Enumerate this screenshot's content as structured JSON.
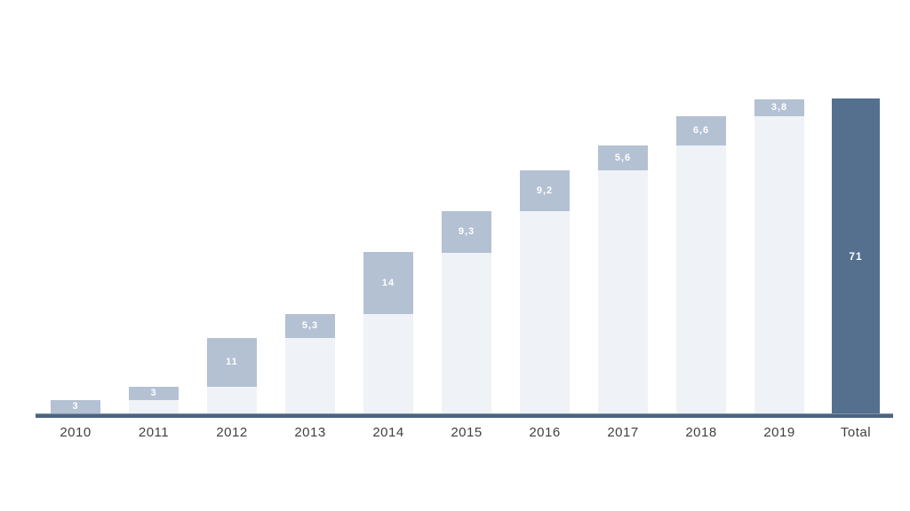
{
  "chart_data": {
    "type": "bar",
    "subtype": "waterfall-stacked",
    "title": "",
    "xlabel": "",
    "ylabel": "",
    "ylim": [
      0,
      71
    ],
    "grid": false,
    "legend": false,
    "categories": [
      "2010",
      "2011",
      "2012",
      "2013",
      "2014",
      "2015",
      "2016",
      "2017",
      "2018",
      "2019"
    ],
    "increments": [
      3,
      3,
      11,
      5.3,
      14,
      9.3,
      9.2,
      5.6,
      6.6,
      3.8
    ],
    "increment_labels": [
      "3",
      "3",
      "11",
      "5,3",
      "14",
      "9,3",
      "9,2",
      "5,6",
      "6,6",
      "3,8"
    ],
    "cumulative_base": [
      0,
      3,
      6,
      17,
      22.3,
      36.3,
      45.6,
      54.8,
      60.4,
      67
    ],
    "total": {
      "label": "Total",
      "value": 71,
      "value_label": "71"
    },
    "colors": {
      "base_segment": "#eff3f7",
      "increment_segment": "#b4c1d3",
      "total_bar": "#55708e",
      "axis_line": "#4d6480",
      "category_label": "#404040",
      "value_label": "#ffffff"
    }
  }
}
